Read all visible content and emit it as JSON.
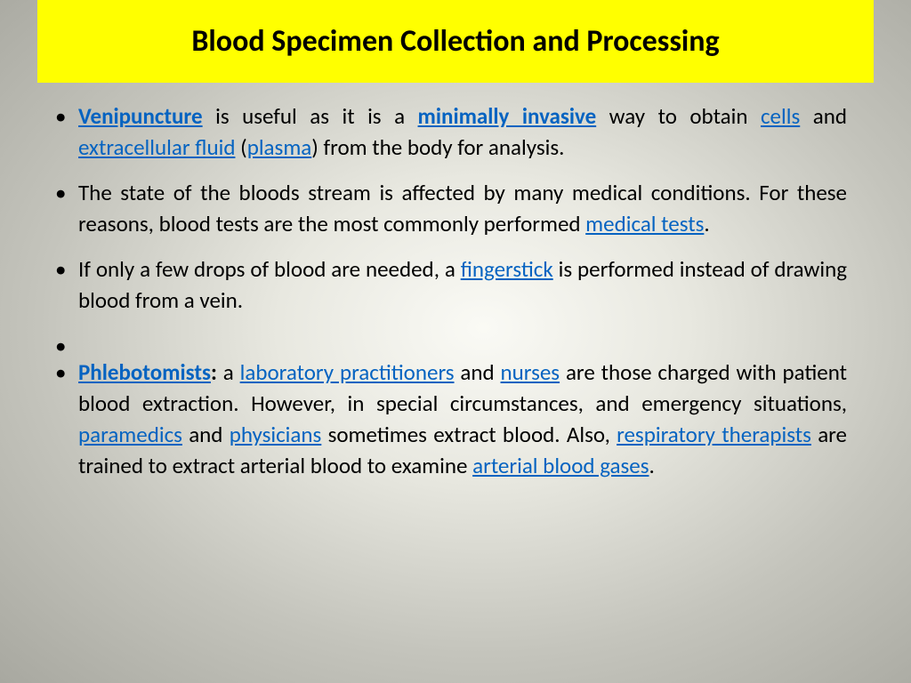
{
  "slide": {
    "title": "Blood Specimen Collection and Processing",
    "colors": {
      "title_bg": "#ffff00",
      "title_text": "#000000",
      "body_text": "#000000",
      "link_color": "#0563c1"
    },
    "typography": {
      "title_fontsize": 34,
      "body_fontsize": 25,
      "font_family": "Calibri"
    },
    "bullets": [
      {
        "segments": [
          {
            "text": "Venipuncture",
            "style": "link-bold"
          },
          {
            "text": " is useful as it is a ",
            "style": "plain"
          },
          {
            "text": "minimally invasive",
            "style": "link-bold"
          },
          {
            "text": " way to obtain ",
            "style": "plain"
          },
          {
            "text": "cells",
            "style": "link"
          },
          {
            "text": "  and ",
            "style": "plain"
          },
          {
            "text": "extracellular fluid",
            "style": "link"
          },
          {
            "text": " (",
            "style": "plain"
          },
          {
            "text": "plasma",
            "style": "link"
          },
          {
            "text": ") from the body for analysis.",
            "style": "plain"
          }
        ]
      },
      {
        "segments": [
          {
            "text": " The state of the bloods stream is affected by many medical conditions. For these reasons, blood tests are the most commonly performed ",
            "style": "plain"
          },
          {
            "text": "medical tests",
            "style": "link"
          },
          {
            "text": ".",
            "style": "plain"
          }
        ]
      },
      {
        "segments": [
          {
            "text": "If only a few drops of blood are needed, a ",
            "style": "plain"
          },
          {
            "text": "fingerstick",
            "style": "link"
          },
          {
            "text": " is performed instead of drawing blood from a vein.",
            "style": "plain"
          }
        ]
      },
      {
        "empty": true,
        "segments": []
      },
      {
        "segments": [
          {
            "text": "Phlebotomists",
            "style": "link-bold"
          },
          {
            "text": ":",
            "style": "bold"
          },
          {
            "text": " a ",
            "style": "plain"
          },
          {
            "text": "laboratory practitioners",
            "style": "link"
          },
          {
            "text": " and ",
            "style": "plain"
          },
          {
            "text": "nurses",
            "style": "link"
          },
          {
            "text": " are those charged with patient blood extraction. However, in special circumstances, and emergency situations, ",
            "style": "plain"
          },
          {
            "text": "paramedics",
            "style": "link"
          },
          {
            "text": " and ",
            "style": "plain"
          },
          {
            "text": "physicians",
            "style": "link"
          },
          {
            "text": " sometimes extract blood. Also, ",
            "style": "plain"
          },
          {
            "text": "respiratory therapists",
            "style": "link"
          },
          {
            "text": " are trained to extract arterial blood to examine ",
            "style": "plain"
          },
          {
            "text": "arterial blood gases",
            "style": "link"
          },
          {
            "text": ".",
            "style": "plain"
          }
        ]
      }
    ]
  }
}
